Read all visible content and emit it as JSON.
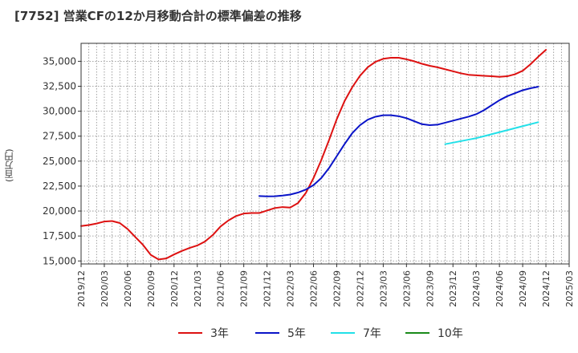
{
  "chart_data": {
    "type": "line",
    "title": "[7752]  営業CFの12か月移動合計の標準偏差の推移",
    "ylabel": "(百万円)",
    "xlabel": "",
    "ylim": [
      14700,
      36800
    ],
    "yticks": [
      15000,
      17500,
      20000,
      22500,
      25000,
      27500,
      30000,
      32500,
      35000
    ],
    "ytick_labels": [
      "15,000",
      "17,500",
      "20,000",
      "22,500",
      "25,000",
      "27,500",
      "30,000",
      "32,500",
      "35,000"
    ],
    "xlim": [
      "2019-12",
      "2025-03"
    ],
    "xtick_labels": [
      "2019/12",
      "2020/03",
      "2020/06",
      "2020/09",
      "2020/12",
      "2021/03",
      "2021/06",
      "2021/09",
      "2021/12",
      "2022/03",
      "2022/06",
      "2022/09",
      "2022/12",
      "2023/03",
      "2023/06",
      "2023/09",
      "2023/12",
      "2024/03",
      "2024/06",
      "2024/09",
      "2024/12",
      "2025/03"
    ],
    "grid": true,
    "legend_position": "bottom",
    "series": [
      {
        "name": "3年",
        "color": "#dd1111",
        "points": [
          [
            "2019-12",
            18500
          ],
          [
            "2020-01",
            18600
          ],
          [
            "2020-02",
            18750
          ],
          [
            "2020-03",
            18950
          ],
          [
            "2020-04",
            19000
          ],
          [
            "2020-05",
            18800
          ],
          [
            "2020-06",
            18200
          ],
          [
            "2020-07",
            17400
          ],
          [
            "2020-08",
            16600
          ],
          [
            "2020-09",
            15600
          ],
          [
            "2020-10",
            15150
          ],
          [
            "2020-11",
            15250
          ],
          [
            "2020-12",
            15650
          ],
          [
            "2021-01",
            16000
          ],
          [
            "2021-02",
            16300
          ],
          [
            "2021-03",
            16550
          ],
          [
            "2021-04",
            16950
          ],
          [
            "2021-05",
            17600
          ],
          [
            "2021-06",
            18450
          ],
          [
            "2021-07",
            19050
          ],
          [
            "2021-08",
            19500
          ],
          [
            "2021-09",
            19750
          ],
          [
            "2021-10",
            19800
          ],
          [
            "2021-11",
            19800
          ],
          [
            "2021-12",
            20050
          ],
          [
            "2022-01",
            20300
          ],
          [
            "2022-02",
            20400
          ],
          [
            "2022-03",
            20350
          ],
          [
            "2022-04",
            20800
          ],
          [
            "2022-05",
            21800
          ],
          [
            "2022-06",
            23300
          ],
          [
            "2022-07",
            25100
          ],
          [
            "2022-08",
            27100
          ],
          [
            "2022-09",
            29200
          ],
          [
            "2022-10",
            31000
          ],
          [
            "2022-11",
            32400
          ],
          [
            "2022-12",
            33550
          ],
          [
            "2023-01",
            34400
          ],
          [
            "2023-02",
            34950
          ],
          [
            "2023-03",
            35250
          ],
          [
            "2023-04",
            35350
          ],
          [
            "2023-05",
            35350
          ],
          [
            "2023-06",
            35200
          ],
          [
            "2023-07",
            35000
          ],
          [
            "2023-08",
            34750
          ],
          [
            "2023-09",
            34550
          ],
          [
            "2023-10",
            34400
          ],
          [
            "2023-11",
            34200
          ],
          [
            "2023-12",
            34000
          ],
          [
            "2024-01",
            33800
          ],
          [
            "2024-02",
            33650
          ],
          [
            "2024-03",
            33600
          ],
          [
            "2024-04",
            33550
          ],
          [
            "2024-05",
            33500
          ],
          [
            "2024-06",
            33450
          ],
          [
            "2024-07",
            33500
          ],
          [
            "2024-08",
            33700
          ],
          [
            "2024-09",
            34050
          ],
          [
            "2024-10",
            34700
          ],
          [
            "2024-11",
            35450
          ],
          [
            "2024-12",
            36150
          ]
        ]
      },
      {
        "name": "5年",
        "color": "#0a14c8",
        "points": [
          [
            "2021-11",
            21500
          ],
          [
            "2021-12",
            21470
          ],
          [
            "2022-01",
            21480
          ],
          [
            "2022-02",
            21550
          ],
          [
            "2022-03",
            21650
          ],
          [
            "2022-04",
            21850
          ],
          [
            "2022-05",
            22150
          ],
          [
            "2022-06",
            22600
          ],
          [
            "2022-07",
            23300
          ],
          [
            "2022-08",
            24300
          ],
          [
            "2022-09",
            25500
          ],
          [
            "2022-10",
            26700
          ],
          [
            "2022-11",
            27800
          ],
          [
            "2022-12",
            28600
          ],
          [
            "2023-01",
            29150
          ],
          [
            "2023-02",
            29450
          ],
          [
            "2023-03",
            29600
          ],
          [
            "2023-04",
            29600
          ],
          [
            "2023-05",
            29500
          ],
          [
            "2023-06",
            29300
          ],
          [
            "2023-07",
            29000
          ],
          [
            "2023-08",
            28700
          ],
          [
            "2023-09",
            28600
          ],
          [
            "2023-10",
            28650
          ],
          [
            "2023-11",
            28850
          ],
          [
            "2023-12",
            29050
          ],
          [
            "2024-01",
            29250
          ],
          [
            "2024-02",
            29450
          ],
          [
            "2024-03",
            29700
          ],
          [
            "2024-04",
            30100
          ],
          [
            "2024-05",
            30600
          ],
          [
            "2024-06",
            31100
          ],
          [
            "2024-07",
            31500
          ],
          [
            "2024-08",
            31800
          ],
          [
            "2024-09",
            32100
          ],
          [
            "2024-10",
            32300
          ],
          [
            "2024-11",
            32450
          ]
        ]
      },
      {
        "name": "7年",
        "color": "#22e0e8",
        "points": [
          [
            "2023-11",
            26700
          ],
          [
            "2023-12",
            26850
          ],
          [
            "2024-01",
            27000
          ],
          [
            "2024-02",
            27150
          ],
          [
            "2024-03",
            27300
          ],
          [
            "2024-04",
            27500
          ],
          [
            "2024-05",
            27700
          ],
          [
            "2024-06",
            27900
          ],
          [
            "2024-07",
            28100
          ],
          [
            "2024-08",
            28300
          ],
          [
            "2024-09",
            28500
          ],
          [
            "2024-10",
            28700
          ],
          [
            "2024-11",
            28900
          ]
        ]
      },
      {
        "name": "10年",
        "color": "#1a8a1a",
        "points": []
      }
    ]
  }
}
